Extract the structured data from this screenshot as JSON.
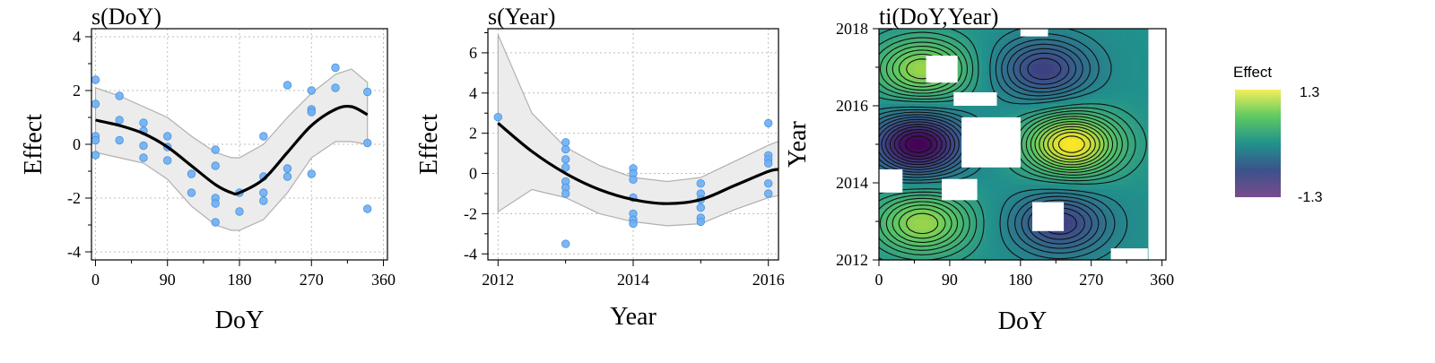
{
  "chart_data": [
    {
      "type": "scatter",
      "title": "s(DoY)",
      "xlabel": "DoY",
      "ylabel": "Effect",
      "xlim": [
        -5,
        365
      ],
      "ylim": [
        -4.3,
        4.3
      ],
      "xticks": [
        0,
        90,
        180,
        270,
        360
      ],
      "yticks": [
        -4,
        -2,
        0,
        2,
        4
      ],
      "grid": true,
      "smooth": {
        "x": [
          0,
          30,
          60,
          90,
          120,
          150,
          170,
          180,
          210,
          240,
          270,
          300,
          320,
          340
        ],
        "fit": [
          0.9,
          0.7,
          0.4,
          -0.1,
          -0.8,
          -1.5,
          -1.8,
          -1.8,
          -1.3,
          -0.3,
          0.7,
          1.3,
          1.4,
          1.1
        ],
        "lower": [
          -0.3,
          -0.5,
          -0.7,
          -1.3,
          -2.3,
          -3.0,
          -3.2,
          -3.2,
          -2.8,
          -1.8,
          -0.5,
          0.1,
          0.1,
          0.0
        ],
        "upper": [
          2.1,
          1.8,
          1.4,
          1.0,
          0.3,
          -0.3,
          -0.5,
          -0.5,
          0.0,
          1.0,
          1.9,
          2.6,
          2.8,
          2.3
        ]
      },
      "points": {
        "x": [
          0,
          0,
          0,
          0,
          0,
          30,
          30,
          30,
          60,
          60,
          60,
          60,
          90,
          90,
          90,
          120,
          120,
          150,
          150,
          150,
          150,
          150,
          180,
          180,
          210,
          210,
          210,
          210,
          240,
          240,
          240,
          270,
          270,
          270,
          270,
          300,
          300,
          340,
          340,
          340
        ],
        "y": [
          2.4,
          1.5,
          0.3,
          0.15,
          -0.4,
          1.8,
          0.9,
          0.15,
          0.8,
          0.5,
          -0.05,
          -0.5,
          0.3,
          -0.1,
          -0.6,
          -1.1,
          -1.8,
          -0.2,
          -0.8,
          -2.0,
          -2.2,
          -2.9,
          -1.8,
          -2.5,
          0.3,
          -1.2,
          -1.8,
          -2.1,
          2.2,
          -0.9,
          -1.2,
          1.3,
          1.2,
          2.0,
          -1.1,
          2.85,
          2.1,
          1.95,
          0.05,
          -2.4
        ]
      }
    },
    {
      "type": "scatter",
      "title": "s(Year)",
      "xlabel": "Year",
      "ylabel": "Effect",
      "xlim": [
        2011.85,
        2016.15
      ],
      "ylim": [
        -4.3,
        7.2
      ],
      "xticks": [
        2012,
        2014,
        2016
      ],
      "yticks": [
        -4,
        -2,
        0,
        2,
        4,
        6
      ],
      "grid": true,
      "smooth": {
        "x": [
          2012,
          2012.5,
          2013,
          2013.5,
          2014,
          2014.5,
          2015,
          2015.5,
          2016,
          2016.15
        ],
        "fit": [
          2.5,
          1.1,
          0.0,
          -0.8,
          -1.3,
          -1.5,
          -1.3,
          -0.6,
          0.1,
          0.2
        ],
        "lower": [
          -1.9,
          -0.8,
          -1.2,
          -2.0,
          -2.4,
          -2.6,
          -2.5,
          -1.8,
          -1.2,
          -1.1
        ],
        "upper": [
          6.9,
          3.0,
          1.3,
          0.4,
          -0.2,
          -0.4,
          -0.2,
          0.6,
          1.4,
          1.6
        ]
      },
      "points": {
        "x": [
          2012,
          2013,
          2013,
          2013,
          2013,
          2013,
          2013,
          2013,
          2013,
          2014,
          2014,
          2014,
          2014,
          2014,
          2014,
          2014,
          2015,
          2015,
          2015,
          2015,
          2015,
          2015,
          2016,
          2016,
          2016,
          2016,
          2016,
          2016
        ],
        "y": [
          2.8,
          1.55,
          1.2,
          0.7,
          0.3,
          -0.4,
          -0.7,
          -1.0,
          -3.5,
          0.25,
          0.0,
          -0.3,
          -1.2,
          -2.0,
          -2.3,
          -2.5,
          -0.5,
          -1.0,
          -1.3,
          -1.7,
          -2.2,
          -2.4,
          2.5,
          0.9,
          0.7,
          0.5,
          -0.5,
          -1.0
        ]
      }
    },
    {
      "type": "heatmap",
      "title": "ti(DoY,Year)",
      "xlabel": "DoY",
      "ylabel": "Year",
      "xlim": [
        0,
        365
      ],
      "ylim": [
        2012,
        2018
      ],
      "xticks": [
        0,
        90,
        180,
        270,
        360
      ],
      "yticks": [
        2012,
        2014,
        2016,
        2018
      ],
      "legend_title": "Effect",
      "colorbar": {
        "max_label": "1.3",
        "min_label": "-1.3",
        "min": -1.3,
        "max": 1.3
      },
      "colormap": [
        "#440154",
        "#3b528b",
        "#21918c",
        "#5ec962",
        "#fde725"
      ],
      "coverage": {
        "doy_range": [
          0,
          342
        ],
        "year_range": [
          2012,
          2018
        ]
      },
      "peaks": [
        {
          "doy": 55,
          "year": 2016.95,
          "effect": 0.9
        },
        {
          "doy": 210,
          "year": 2016.95,
          "effect": -0.8
        },
        {
          "doy": 50,
          "year": 2015.0,
          "effect": -1.3
        },
        {
          "doy": 245,
          "year": 2015.0,
          "effect": 1.3
        },
        {
          "doy": 55,
          "year": 2012.95,
          "effect": 0.9
        },
        {
          "doy": 230,
          "year": 2012.95,
          "effect": -0.8
        }
      ],
      "missing_regions": [
        {
          "doy": [
            60,
            100
          ],
          "year": [
            2016.6,
            2017.3
          ]
        },
        {
          "doy": [
            95,
            150
          ],
          "year": [
            2016.0,
            2016.35
          ]
        },
        {
          "doy": [
            105,
            180
          ],
          "year": [
            2014.4,
            2015.7
          ]
        },
        {
          "doy": [
            0,
            30
          ],
          "year": [
            2013.75,
            2014.35
          ]
        },
        {
          "doy": [
            80,
            125
          ],
          "year": [
            2013.55,
            2014.1
          ]
        },
        {
          "doy": [
            195,
            235
          ],
          "year": [
            2012.75,
            2013.5
          ]
        },
        {
          "doy": [
            295,
            342
          ],
          "year": [
            2012,
            2012.3
          ]
        },
        {
          "doy": [
            180,
            215
          ],
          "year": [
            2017.8,
            2018
          ]
        }
      ]
    }
  ]
}
